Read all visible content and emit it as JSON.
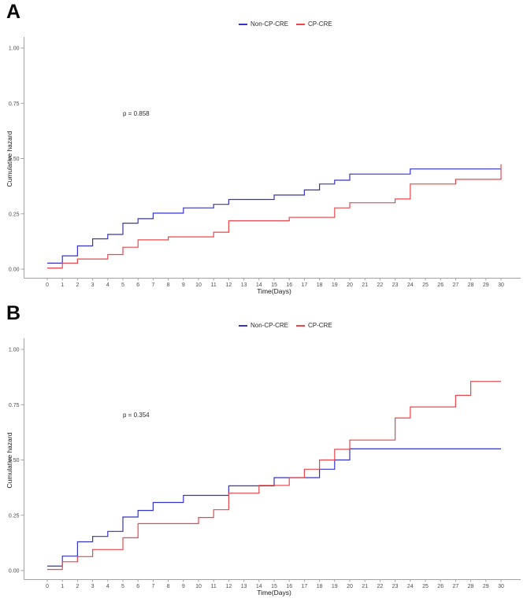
{
  "page": {
    "background": "#ffffff"
  },
  "legend": {
    "position": "top-center"
  },
  "chart_data": [
    {
      "type": "line",
      "subtype": "step-cumulative-hazard",
      "panel_label": "A",
      "title": "",
      "xlabel": "Time(Days)",
      "ylabel": "Cumulative hazard",
      "annotation": "p = 0.858",
      "xlim": [
        0,
        30
      ],
      "ylim": [
        0,
        1.0
      ],
      "grid": false,
      "legend_position": "top-center",
      "xticks": [
        0,
        1,
        2,
        3,
        4,
        5,
        6,
        7,
        8,
        9,
        10,
        11,
        12,
        13,
        14,
        15,
        16,
        17,
        18,
        19,
        20,
        21,
        22,
        23,
        24,
        25,
        26,
        27,
        28,
        29,
        30
      ],
      "yticks": [
        0,
        0.25,
        0.5,
        0.75,
        1.0
      ],
      "ytick_labels": [
        "0.00",
        "0.25",
        "0.50",
        "0.75",
        "1.00"
      ],
      "series": [
        {
          "name": "Non-CP-CRE",
          "color": "#3434C8",
          "step": true,
          "points": [
            [
              0,
              0.027
            ],
            [
              1,
              0.06
            ],
            [
              2,
              0.105
            ],
            [
              3,
              0.137
            ],
            [
              4,
              0.157
            ],
            [
              5,
              0.208
            ],
            [
              6,
              0.228
            ],
            [
              7,
              0.253
            ],
            [
              9,
              0.277
            ],
            [
              11,
              0.293
            ],
            [
              12,
              0.315
            ],
            [
              15,
              0.335
            ],
            [
              17,
              0.358
            ],
            [
              18,
              0.385
            ],
            [
              19,
              0.402
            ],
            [
              20,
              0.43
            ],
            [
              24,
              0.453
            ]
          ]
        },
        {
          "name": "CP-CRE",
          "color": "#E9474B",
          "step": true,
          "points": [
            [
              0,
              0.005
            ],
            [
              1,
              0.027
            ],
            [
              2,
              0.046
            ],
            [
              4,
              0.066
            ],
            [
              5,
              0.099
            ],
            [
              6,
              0.132
            ],
            [
              8,
              0.146
            ],
            [
              11,
              0.167
            ],
            [
              12,
              0.219
            ],
            [
              16,
              0.234
            ],
            [
              19,
              0.277
            ],
            [
              20,
              0.3
            ],
            [
              23,
              0.317
            ],
            [
              24,
              0.385
            ],
            [
              27,
              0.406
            ],
            [
              30,
              0.474
            ]
          ]
        }
      ]
    },
    {
      "type": "line",
      "subtype": "step-cumulative-hazard",
      "panel_label": "B",
      "title": "",
      "xlabel": "Time(Days)",
      "ylabel": "Cumulative hazard",
      "annotation": "p = 0.354",
      "xlim": [
        0,
        30
      ],
      "ylim": [
        0,
        1.0
      ],
      "grid": false,
      "legend_position": "top-center",
      "xticks": [
        0,
        1,
        2,
        3,
        4,
        5,
        6,
        7,
        8,
        9,
        10,
        11,
        12,
        13,
        14,
        15,
        16,
        17,
        18,
        19,
        20,
        21,
        22,
        23,
        24,
        25,
        26,
        27,
        28,
        29,
        30
      ],
      "yticks": [
        0,
        0.25,
        0.5,
        0.75,
        1.0
      ],
      "ytick_labels": [
        "0.00",
        "0.25",
        "0.50",
        "0.75",
        "1.00"
      ],
      "series": [
        {
          "name": "Non-CP-CRE",
          "color": "#3434C8",
          "step": true,
          "points": [
            [
              0,
              0.02
            ],
            [
              1,
              0.065
            ],
            [
              2,
              0.13
            ],
            [
              3,
              0.154
            ],
            [
              4,
              0.177
            ],
            [
              5,
              0.242
            ],
            [
              6,
              0.272
            ],
            [
              7,
              0.308
            ],
            [
              9,
              0.34
            ],
            [
              12,
              0.383
            ],
            [
              15,
              0.42
            ],
            [
              18,
              0.458
            ],
            [
              19,
              0.5
            ],
            [
              20,
              0.55
            ]
          ]
        },
        {
          "name": "CP-CRE",
          "color": "#E9474B",
          "step": true,
          "points": [
            [
              0,
              0.005
            ],
            [
              1,
              0.04
            ],
            [
              2,
              0.063
            ],
            [
              3,
              0.095
            ],
            [
              5,
              0.148
            ],
            [
              6,
              0.212
            ],
            [
              10,
              0.24
            ],
            [
              11,
              0.275
            ],
            [
              12,
              0.35
            ],
            [
              14,
              0.385
            ],
            [
              16,
              0.42
            ],
            [
              17,
              0.458
            ],
            [
              18,
              0.5
            ],
            [
              19,
              0.548
            ],
            [
              20,
              0.59
            ],
            [
              23,
              0.69
            ],
            [
              24,
              0.74
            ],
            [
              27,
              0.792
            ],
            [
              28,
              0.855
            ]
          ]
        }
      ]
    }
  ]
}
